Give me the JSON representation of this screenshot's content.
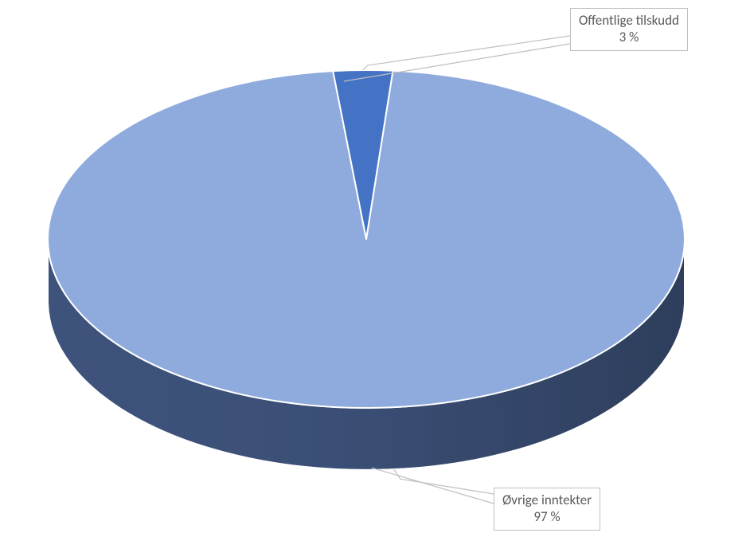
{
  "chart": {
    "type": "pie",
    "background_color": "#ffffff",
    "slice_outline_color": "#ffffff",
    "slice_outline_width": 2,
    "label_fontsize": 17,
    "label_color": "#595959",
    "label_border_color": "#bfbfbf",
    "slices": [
      {
        "label": "Offentlige tilskudd",
        "value_text": "3 %",
        "percent": 3,
        "top_color": "#4472c4",
        "side_color": "#2f528f"
      },
      {
        "label": "Øvrige inntekter",
        "value_text": "97 %",
        "percent": 97,
        "top_color": "#8faadc",
        "side_color": "#3b4f76"
      }
    ]
  }
}
